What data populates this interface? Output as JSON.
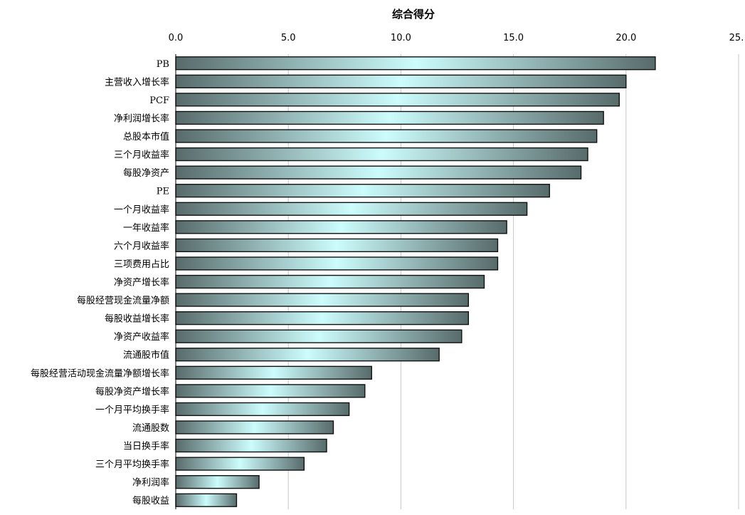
{
  "chart_data": {
    "type": "bar",
    "orientation": "horizontal",
    "title": "综合得分",
    "x_axis_position": "top",
    "xlim": [
      0,
      25
    ],
    "xticks": [
      "0.0",
      "5.0",
      "10.0",
      "15.0",
      "20.0",
      "25."
    ],
    "grid": true,
    "categories": [
      "PB",
      "主营收入增长率",
      "PCF",
      "净利润增长率",
      "总股本市值",
      "三个月收益率",
      "每股净资产",
      "PE",
      "一个月收益率",
      "一年收益率",
      "六个月收益率",
      "三项费用占比",
      "净资产增长率",
      "每股经营现金流量净额",
      "每股收益增长率",
      "净资产收益率",
      "流通股市值",
      "每股经营活动现金流量净额增长率",
      "每股净资产增长率",
      "一个月平均换手率",
      "流通股数",
      "当日换手率",
      "三个月平均换手率",
      "净利润率",
      "每股收益"
    ],
    "values": [
      21.3,
      20.0,
      19.7,
      19.0,
      18.7,
      18.3,
      18.0,
      16.6,
      15.6,
      14.7,
      14.3,
      14.3,
      13.7,
      13.0,
      13.0,
      12.7,
      11.7,
      8.7,
      8.4,
      7.7,
      7.0,
      6.7,
      5.7,
      3.7,
      2.7
    ],
    "bar_gradient": {
      "edge": "#586b6b",
      "center": "#ccfcfc"
    }
  }
}
